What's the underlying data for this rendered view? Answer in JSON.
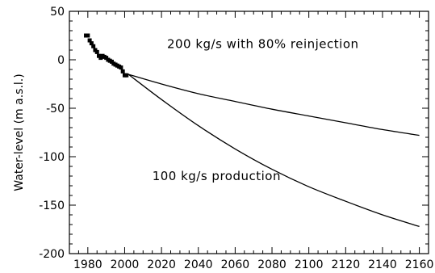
{
  "chart_data": {
    "type": "line",
    "title": "",
    "xlabel": "",
    "ylabel": "Water-level (m a.s.l.)",
    "xlim": [
      1970,
      2165
    ],
    "ylim": [
      -200,
      50
    ],
    "x_ticks": [
      1980,
      2000,
      2020,
      2040,
      2060,
      2080,
      2100,
      2120,
      2140,
      2160
    ],
    "y_ticks": [
      50,
      0,
      -50,
      -100,
      -150,
      -200
    ],
    "grid": false,
    "legend": "none",
    "annotations": [
      {
        "text": "200 kg/s with 80% reinjection",
        "x": 2023,
        "y": 12
      },
      {
        "text": "100 kg/s production",
        "x": 2015,
        "y": -124
      }
    ],
    "series": [
      {
        "kind": "markers",
        "x": [
          1979,
          1980,
          1981,
          1982,
          1983,
          1984,
          1985,
          1986,
          1987,
          1988,
          1989,
          1990,
          1991,
          1992,
          1993,
          1994,
          1995,
          1996,
          1997,
          1998,
          1999,
          2000,
          2001
        ],
        "y": [
          25,
          25,
          20,
          17,
          14,
          10,
          8,
          4,
          2,
          4,
          3,
          2,
          0,
          -1,
          -2,
          -4,
          -5,
          -6,
          -7,
          -8,
          -12,
          -16,
          -16
        ]
      },
      {
        "kind": "line",
        "label": "200 kg/s with 80% reinjection",
        "x": [
          2002,
          2020,
          2040,
          2060,
          2080,
          2100,
          2120,
          2140,
          2160
        ],
        "y": [
          -15,
          -25,
          -35,
          -43,
          -51,
          -58,
          -65,
          -72,
          -78
        ]
      },
      {
        "kind": "line",
        "label": "100 kg/s production",
        "x": [
          2002,
          2020,
          2040,
          2060,
          2080,
          2100,
          2120,
          2140,
          2160
        ],
        "y": [
          -15,
          -41,
          -68,
          -92,
          -113,
          -131,
          -146,
          -160,
          -172
        ]
      }
    ]
  }
}
